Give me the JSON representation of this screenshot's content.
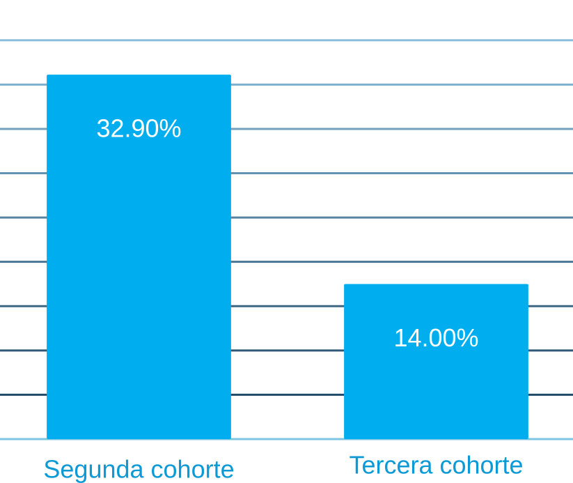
{
  "chart_data": {
    "type": "bar",
    "categories": [
      "Segunda cohorte",
      "Tercera cohorte"
    ],
    "values": [
      32.9,
      14.0
    ],
    "value_labels": [
      "32.90%",
      "14.00%"
    ],
    "color": "#00aeef",
    "ylim": [
      0,
      38
    ],
    "yticks": [
      0,
      4,
      8,
      12,
      16,
      20,
      24,
      28,
      32,
      36
    ],
    "grid": true
  }
}
